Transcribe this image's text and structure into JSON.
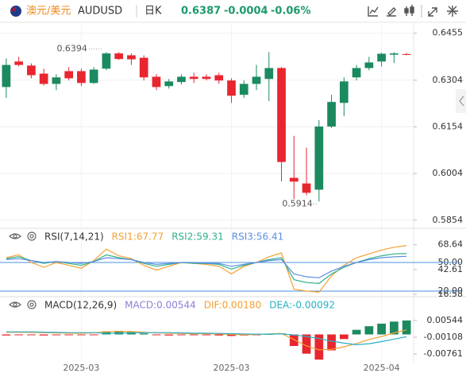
{
  "header": {
    "pair_name": "澳元/美元",
    "symbol": "AUDUSD",
    "period": "日K",
    "price": "0.6387",
    "change": "-0.0004",
    "change_pct": "-0.06%"
  },
  "chart_data": [
    {
      "type": "candlestick",
      "up_color": "#1b8a5f",
      "down_color": "#e8262f",
      "grid": true,
      "categories": [
        null,
        null,
        null,
        null,
        null,
        null,
        "2025-03",
        null,
        null,
        null,
        null,
        null,
        null,
        null,
        null,
        null,
        null,
        null,
        "2025-03",
        null,
        null,
        null,
        null,
        null,
        null,
        null,
        null,
        null,
        null,
        null,
        "2025-04",
        null,
        null
      ],
      "open": [
        0.6282,
        0.6364,
        0.6351,
        0.6325,
        0.6292,
        0.6333,
        0.6333,
        0.6295,
        0.6341,
        0.639,
        0.6384,
        0.6376,
        0.6315,
        0.6285,
        0.6298,
        0.6315,
        0.6315,
        0.632,
        0.6303,
        0.6257,
        0.6292,
        0.6308,
        0.6343,
        0.599,
        0.5972,
        0.5952,
        0.6155,
        0.6231,
        0.6313,
        0.6343,
        0.6364,
        0.6386,
        0.6388
      ],
      "high": [
        0.6374,
        0.6379,
        0.6358,
        0.6341,
        0.6323,
        0.6346,
        0.6341,
        0.6346,
        0.6394,
        0.6394,
        0.639,
        0.6384,
        0.6323,
        0.6308,
        0.6323,
        0.6328,
        0.6323,
        0.6328,
        0.631,
        0.6303,
        0.6353,
        0.6394,
        0.6346,
        0.6125,
        0.6087,
        0.6176,
        0.6257,
        0.6313,
        0.6353,
        0.6379,
        0.6392,
        0.6394,
        0.6392
      ],
      "low": [
        0.6247,
        0.6348,
        0.631,
        0.6287,
        0.6272,
        0.6303,
        0.6285,
        0.6292,
        0.6336,
        0.6369,
        0.6353,
        0.6303,
        0.6272,
        0.6277,
        0.629,
        0.6295,
        0.6303,
        0.6292,
        0.6231,
        0.6247,
        0.6272,
        0.6237,
        0.5978,
        0.5922,
        0.5934,
        0.5914,
        0.615,
        0.6188,
        0.6303,
        0.6336,
        0.6348,
        0.6359,
        0.6384
      ],
      "close": [
        0.6353,
        0.6353,
        0.632,
        0.6292,
        0.6313,
        0.631,
        0.6295,
        0.6338,
        0.639,
        0.6372,
        0.6371,
        0.6313,
        0.6282,
        0.63,
        0.6315,
        0.6308,
        0.6308,
        0.6303,
        0.6254,
        0.6292,
        0.6315,
        0.6343,
        0.6041,
        0.5978,
        0.5942,
        0.6155,
        0.6234,
        0.63,
        0.6343,
        0.6361,
        0.6389,
        0.639,
        0.6387
      ],
      "ylim": [
        0.5833,
        0.6485
      ],
      "yticks": [
        0.6455,
        0.6304,
        0.6154,
        0.6004,
        0.5854
      ],
      "high_label": "0.6394",
      "low_label": "0.5914"
    },
    {
      "type": "line",
      "title": "RSI(7,14,21)",
      "ylim": [
        15,
        85
      ],
      "yticks": [
        68.64,
        {
          "value": 50,
          "label": "50.00"
        },
        42.61,
        {
          "value": 20,
          "label": "20.00"
        },
        16.58
      ],
      "reference_lines": [
        50,
        20
      ],
      "reference_color": "#4a90e2",
      "series": [
        {
          "name": "RSI1:67.77",
          "color": "#f5a030",
          "values": [
            55,
            58,
            50,
            45,
            50,
            47,
            44,
            52,
            64,
            57,
            54,
            47,
            42,
            46,
            50,
            49,
            48,
            46,
            38,
            46,
            50,
            56,
            60,
            22,
            20,
            19,
            36,
            47,
            55,
            59,
            63,
            66,
            67.77
          ]
        },
        {
          "name": "RSI2:59.31",
          "color": "#2fb08a",
          "values": [
            54,
            56,
            52,
            49,
            51,
            49,
            47,
            51,
            58,
            55,
            53,
            49,
            46,
            48,
            50,
            49,
            49,
            48,
            43,
            47,
            50,
            53,
            55,
            32,
            29,
            28,
            38,
            45,
            50,
            54,
            57,
            59,
            59.31
          ]
        },
        {
          "name": "RSI3:56.41",
          "color": "#5b8fe0",
          "values": [
            53,
            54,
            52,
            50,
            51,
            50,
            49,
            51,
            55,
            54,
            53,
            50,
            48,
            49,
            50,
            50,
            49,
            49,
            46,
            48,
            50,
            52,
            53,
            38,
            35,
            34,
            41,
            46,
            50,
            53,
            55,
            56,
            56.41
          ]
        }
      ]
    },
    {
      "type": "macd",
      "title": "MACD(12,26,9)",
      "ylim": [
        -0.0107,
        0.0144
      ],
      "yticks": [
        0.00544,
        -0.00108,
        -0.00761
      ],
      "up_color": "#1b8a5f",
      "down_color": "#e8262f",
      "series": [
        {
          "name": "MACD:0.00544",
          "kind": "bar",
          "color": "#8c7fd9",
          "values": [
            -0.0004,
            -0.0003,
            -0.0003,
            -0.0004,
            -0.0003,
            -0.0003,
            -0.0003,
            -0.0002,
            0.0012,
            0.0014,
            0.001,
            0.0004,
            -0.0003,
            -0.0004,
            -0.0003,
            -0.0003,
            -0.0003,
            -0.0004,
            -0.0006,
            -0.0004,
            -0.0002,
            0.0002,
            0.0004,
            -0.0045,
            -0.0075,
            -0.0098,
            -0.0062,
            -0.0018,
            0.0018,
            0.0032,
            0.0042,
            0.005,
            0.00544
          ]
        },
        {
          "name": "DIF:0.00180",
          "kind": "line",
          "color": "#f5a030",
          "values": [
            0.0008,
            0.0009,
            0.0008,
            0.0007,
            0.0006,
            0.0005,
            0.0005,
            0.0006,
            0.001,
            0.0012,
            0.0011,
            0.0009,
            0.0006,
            0.0005,
            0.0004,
            0.0003,
            0.0003,
            0.0002,
            0.0,
            -0.0001,
            0.0,
            0.0002,
            0.0004,
            -0.002,
            -0.0045,
            -0.006,
            -0.0058,
            -0.0048,
            -0.0035,
            -0.002,
            -0.0008,
            0.0006,
            0.0018
          ]
        },
        {
          "name": "DEA:-0.00092",
          "kind": "line",
          "color": "#27b0c7",
          "values": [
            0.001,
            0.001,
            0.001,
            0.0009,
            0.0008,
            0.0007,
            0.0007,
            0.0007,
            0.0004,
            0.0005,
            0.0006,
            0.0007,
            0.0007,
            0.0007,
            0.0006,
            0.0005,
            0.0005,
            0.0004,
            0.0003,
            0.0002,
            0.0001,
            0.0001,
            0.0002,
            -0.0002,
            -0.0008,
            -0.0016,
            -0.0026,
            -0.0034,
            -0.004,
            -0.0036,
            -0.0028,
            -0.0018,
            -0.00092
          ]
        }
      ]
    }
  ]
}
